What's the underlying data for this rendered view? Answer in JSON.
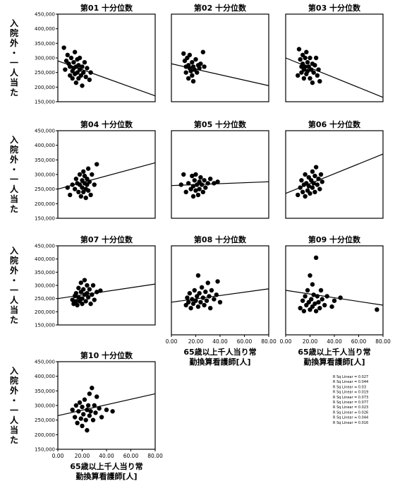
{
  "figure": {
    "ylabel_lines": [
      "入院外・一人当た"
    ],
    "xlabel_lines": [
      "65歳以上千人当り常",
      "勤換算看護師[人]"
    ],
    "legend_entries": [
      "R Sq Linear = 0.027",
      "R Sq Linear = 0.044",
      "R Sq Linear = 0.03",
      "R Sq Linear = 0.019",
      "R Sq Linear = 0.073",
      "R Sq Linear = 0.077",
      "R Sq Linear = 0.023",
      "R Sq Linear = 0.026",
      "R Sq Linear = 0.044",
      "R Sq Linear = 0.016"
    ]
  },
  "chart_data": [
    {
      "type": "scatter",
      "title": "第01 十分位数",
      "xlim": [
        0,
        80
      ],
      "ylim": [
        150000,
        450000
      ],
      "yticks": [
        "150,000",
        "200,000",
        "250,000",
        "300,000",
        "350,000",
        "400,000",
        "450,000"
      ],
      "xticks": [],
      "points": [
        [
          5,
          335000
        ],
        [
          6,
          260000
        ],
        [
          7,
          290000
        ],
        [
          8,
          310000
        ],
        [
          9,
          280000
        ],
        [
          10,
          270000
        ],
        [
          10,
          240000
        ],
        [
          11,
          300000
        ],
        [
          12,
          255000
        ],
        [
          12,
          230000
        ],
        [
          13,
          285000
        ],
        [
          13,
          265000
        ],
        [
          14,
          245000
        ],
        [
          14,
          320000
        ],
        [
          15,
          270000
        ],
        [
          15,
          215000
        ],
        [
          16,
          295000
        ],
        [
          16,
          250000
        ],
        [
          17,
          275000
        ],
        [
          17,
          230000
        ],
        [
          18,
          260000
        ],
        [
          18,
          300000
        ],
        [
          19,
          240000
        ],
        [
          20,
          270000
        ],
        [
          20,
          205000
        ],
        [
          21,
          250000
        ],
        [
          22,
          285000
        ],
        [
          23,
          235000
        ],
        [
          24,
          265000
        ],
        [
          26,
          225000
        ],
        [
          27,
          250000
        ]
      ],
      "fit": {
        "y_at_xmin": 290000,
        "y_at_xmax": 170000
      }
    },
    {
      "type": "scatter",
      "title": "第02 十分位数",
      "xlim": [
        0,
        80
      ],
      "ylim": [
        150000,
        450000
      ],
      "yticks": [],
      "xticks": [],
      "points": [
        [
          10,
          315000
        ],
        [
          11,
          290000
        ],
        [
          12,
          270000
        ],
        [
          12,
          250000
        ],
        [
          13,
          300000
        ],
        [
          14,
          275000
        ],
        [
          14,
          230000
        ],
        [
          15,
          265000
        ],
        [
          15,
          310000
        ],
        [
          16,
          255000
        ],
        [
          17,
          285000
        ],
        [
          17,
          240000
        ],
        [
          18,
          270000
        ],
        [
          18,
          220000
        ],
        [
          19,
          260000
        ],
        [
          20,
          295000
        ],
        [
          21,
          250000
        ],
        [
          22,
          275000
        ],
        [
          23,
          265000
        ],
        [
          24,
          280000
        ],
        [
          26,
          320000
        ],
        [
          27,
          270000
        ]
      ],
      "fit": {
        "y_at_xmin": 280000,
        "y_at_xmax": 205000
      }
    },
    {
      "type": "scatter",
      "title": "第03 十分位数",
      "xlim": [
        0,
        80
      ],
      "ylim": [
        150000,
        450000
      ],
      "yticks": [],
      "xticks": [],
      "points": [
        [
          10,
          240000
        ],
        [
          11,
          330000
        ],
        [
          12,
          295000
        ],
        [
          13,
          270000
        ],
        [
          13,
          250000
        ],
        [
          14,
          310000
        ],
        [
          14,
          280000
        ],
        [
          15,
          260000
        ],
        [
          15,
          230000
        ],
        [
          16,
          300000
        ],
        [
          16,
          270000
        ],
        [
          17,
          245000
        ],
        [
          17,
          320000
        ],
        [
          18,
          285000
        ],
        [
          18,
          255000
        ],
        [
          19,
          270000
        ],
        [
          20,
          230000
        ],
        [
          20,
          300000
        ],
        [
          21,
          260000
        ],
        [
          22,
          280000
        ],
        [
          22,
          215000
        ],
        [
          23,
          250000
        ],
        [
          24,
          275000
        ],
        [
          25,
          300000
        ],
        [
          26,
          240000
        ],
        [
          27,
          260000
        ],
        [
          28,
          220000
        ]
      ],
      "fit": {
        "y_at_xmin": 300000,
        "y_at_xmax": 165000
      }
    },
    {
      "type": "scatter",
      "title": "第04 十分位数",
      "xlim": [
        0,
        80
      ],
      "ylim": [
        150000,
        450000
      ],
      "yticks": [
        "150,000",
        "200,000",
        "250,000",
        "300,000",
        "350,000",
        "400,000",
        "450,000"
      ],
      "xticks": [],
      "points": [
        [
          8,
          255000
        ],
        [
          10,
          230000
        ],
        [
          12,
          265000
        ],
        [
          14,
          250000
        ],
        [
          15,
          285000
        ],
        [
          16,
          270000
        ],
        [
          17,
          240000
        ],
        [
          18,
          300000
        ],
        [
          18,
          265000
        ],
        [
          19,
          225000
        ],
        [
          20,
          280000
        ],
        [
          20,
          255000
        ],
        [
          21,
          310000
        ],
        [
          21,
          240000
        ],
        [
          22,
          270000
        ],
        [
          22,
          295000
        ],
        [
          23,
          250000
        ],
        [
          23,
          220000
        ],
        [
          24,
          285000
        ],
        [
          24,
          265000
        ],
        [
          25,
          320000
        ],
        [
          25,
          245000
        ],
        [
          26,
          275000
        ],
        [
          27,
          230000
        ],
        [
          28,
          300000
        ],
        [
          30,
          265000
        ],
        [
          32,
          335000
        ]
      ],
      "fit": {
        "y_at_xmin": 250000,
        "y_at_xmax": 340000
      }
    },
    {
      "type": "scatter",
      "title": "第05 十分位数",
      "xlim": [
        0,
        80
      ],
      "ylim": [
        150000,
        450000
      ],
      "yticks": [],
      "xticks": [],
      "points": [
        [
          8,
          265000
        ],
        [
          10,
          300000
        ],
        [
          12,
          240000
        ],
        [
          14,
          270000
        ],
        [
          16,
          250000
        ],
        [
          17,
          295000
        ],
        [
          18,
          260000
        ],
        [
          18,
          225000
        ],
        [
          19,
          280000
        ],
        [
          20,
          245000
        ],
        [
          20,
          300000
        ],
        [
          21,
          265000
        ],
        [
          22,
          230000
        ],
        [
          23,
          275000
        ],
        [
          23,
          250000
        ],
        [
          24,
          290000
        ],
        [
          25,
          265000
        ],
        [
          26,
          240000
        ],
        [
          27,
          280000
        ],
        [
          28,
          255000
        ],
        [
          30,
          270000
        ],
        [
          32,
          285000
        ],
        [
          35,
          270000
        ],
        [
          38,
          275000
        ]
      ],
      "fit": {
        "y_at_xmin": 262000,
        "y_at_xmax": 275000
      }
    },
    {
      "type": "scatter",
      "title": "第06 十分位数",
      "xlim": [
        0,
        80
      ],
      "ylim": [
        150000,
        450000
      ],
      "yticks": [],
      "xticks": [],
      "points": [
        [
          10,
          230000
        ],
        [
          12,
          255000
        ],
        [
          13,
          280000
        ],
        [
          14,
          240000
        ],
        [
          15,
          265000
        ],
        [
          16,
          300000
        ],
        [
          16,
          225000
        ],
        [
          17,
          270000
        ],
        [
          18,
          245000
        ],
        [
          19,
          290000
        ],
        [
          19,
          260000
        ],
        [
          20,
          235000
        ],
        [
          21,
          280000
        ],
        [
          22,
          255000
        ],
        [
          22,
          310000
        ],
        [
          23,
          270000
        ],
        [
          24,
          240000
        ],
        [
          24,
          295000
        ],
        [
          25,
          325000
        ],
        [
          26,
          265000
        ],
        [
          27,
          285000
        ],
        [
          28,
          250000
        ],
        [
          29,
          300000
        ],
        [
          30,
          275000
        ]
      ],
      "fit": {
        "y_at_xmin": 235000,
        "y_at_xmax": 370000
      }
    },
    {
      "type": "scatter",
      "title": "第07 十分位数",
      "xlim": [
        0,
        80
      ],
      "ylim": [
        150000,
        450000
      ],
      "yticks": [
        "150,000",
        "200,000",
        "250,000",
        "300,000",
        "350,000",
        "400,000",
        "450,000"
      ],
      "xticks": [],
      "points": [
        [
          12,
          245000
        ],
        [
          13,
          230000
        ],
        [
          14,
          260000
        ],
        [
          15,
          240000
        ],
        [
          15,
          270000
        ],
        [
          16,
          225000
        ],
        [
          17,
          255000
        ],
        [
          17,
          290000
        ],
        [
          18,
          240000
        ],
        [
          19,
          275000
        ],
        [
          19,
          310000
        ],
        [
          20,
          250000
        ],
        [
          20,
          230000
        ],
        [
          21,
          285000
        ],
        [
          22,
          265000
        ],
        [
          22,
          320000
        ],
        [
          23,
          240000
        ],
        [
          24,
          300000
        ],
        [
          24,
          270000
        ],
        [
          25,
          255000
        ],
        [
          26,
          285000
        ],
        [
          27,
          230000
        ],
        [
          28,
          265000
        ],
        [
          29,
          300000
        ],
        [
          30,
          245000
        ],
        [
          32,
          275000
        ],
        [
          35,
          280000
        ]
      ],
      "fit": {
        "y_at_xmin": 250000,
        "y_at_xmax": 305000
      }
    },
    {
      "type": "scatter",
      "title": "第08 十分位数",
      "xlim": [
        0,
        80
      ],
      "ylim": [
        150000,
        450000
      ],
      "yticks": [],
      "xticks": [
        "0.00",
        "20.00",
        "40.00",
        "60.00",
        "80.00"
      ],
      "points": [
        [
          12,
          250000
        ],
        [
          13,
          275000
        ],
        [
          14,
          260000
        ],
        [
          15,
          290000
        ],
        [
          16,
          240000
        ],
        [
          17,
          270000
        ],
        [
          18,
          255000
        ],
        [
          19,
          300000
        ],
        [
          20,
          265000
        ],
        [
          21,
          280000
        ],
        [
          22,
          245000
        ],
        [
          22,
          350000
        ],
        [
          23,
          290000
        ],
        [
          24,
          260000
        ],
        [
          25,
          310000
        ],
        [
          26,
          275000
        ],
        [
          27,
          250000
        ],
        [
          28,
          295000
        ],
        [
          29,
          265000
        ],
        [
          30,
          325000
        ],
        [
          31,
          280000
        ],
        [
          32,
          240000
        ],
        [
          33,
          300000
        ],
        [
          35,
          270000
        ],
        [
          37,
          285000
        ],
        [
          38,
          330000
        ],
        [
          40,
          260000
        ]
      ],
      "fit": {
        "y_at_xmin": 260000,
        "y_at_xmax": 305000
      }
    },
    {
      "type": "scatter",
      "title": "第09 十分位数",
      "xlim": [
        0,
        80
      ],
      "ylim": [
        150000,
        450000
      ],
      "yticks": [],
      "xticks": [
        "0.00",
        "20.00",
        "40.00",
        "60.00",
        "80.00"
      ],
      "points": [
        [
          12,
          240000
        ],
        [
          14,
          265000
        ],
        [
          15,
          230000
        ],
        [
          16,
          280000
        ],
        [
          17,
          250000
        ],
        [
          18,
          300000
        ],
        [
          19,
          260000
        ],
        [
          20,
          235000
        ],
        [
          20,
          350000
        ],
        [
          21,
          270000
        ],
        [
          22,
          245000
        ],
        [
          22,
          320000
        ],
        [
          23,
          285000
        ],
        [
          24,
          255000
        ],
        [
          25,
          410000
        ],
        [
          25,
          230000
        ],
        [
          26,
          280000
        ],
        [
          27,
          260000
        ],
        [
          28,
          240000
        ],
        [
          29,
          300000
        ],
        [
          30,
          270000
        ],
        [
          32,
          250000
        ],
        [
          34,
          280000
        ],
        [
          38,
          245000
        ],
        [
          40,
          265000
        ],
        [
          45,
          275000
        ],
        [
          75,
          235000
        ]
      ],
      "fit": {
        "y_at_xmin": 300000,
        "y_at_xmax": 250000
      }
    },
    {
      "type": "scatter",
      "title": "第10 十分位数",
      "xlim": [
        0,
        80
      ],
      "ylim": [
        150000,
        450000
      ],
      "yticks": [
        "150,000",
        "200,000",
        "250,000",
        "300,000",
        "350,000",
        "400,000",
        "450,000"
      ],
      "xticks": [
        "0.00",
        "20.00",
        "40.00",
        "60.00",
        "80.00"
      ],
      "points": [
        [
          12,
          285000
        ],
        [
          14,
          260000
        ],
        [
          15,
          300000
        ],
        [
          16,
          240000
        ],
        [
          17,
          280000
        ],
        [
          18,
          310000
        ],
        [
          19,
          255000
        ],
        [
          20,
          295000
        ],
        [
          20,
          230000
        ],
        [
          21,
          270000
        ],
        [
          22,
          320000
        ],
        [
          23,
          250000
        ],
        [
          24,
          285000
        ],
        [
          24,
          215000
        ],
        [
          25,
          300000
        ],
        [
          26,
          340000
        ],
        [
          26,
          265000
        ],
        [
          27,
          280000
        ],
        [
          28,
          360000
        ],
        [
          29,
          250000
        ],
        [
          30,
          300000
        ],
        [
          31,
          275000
        ],
        [
          32,
          330000
        ],
        [
          34,
          290000
        ],
        [
          36,
          260000
        ],
        [
          40,
          285000
        ],
        [
          45,
          280000
        ]
      ],
      "fit": {
        "y_at_xmin": 265000,
        "y_at_xmax": 340000
      }
    }
  ]
}
